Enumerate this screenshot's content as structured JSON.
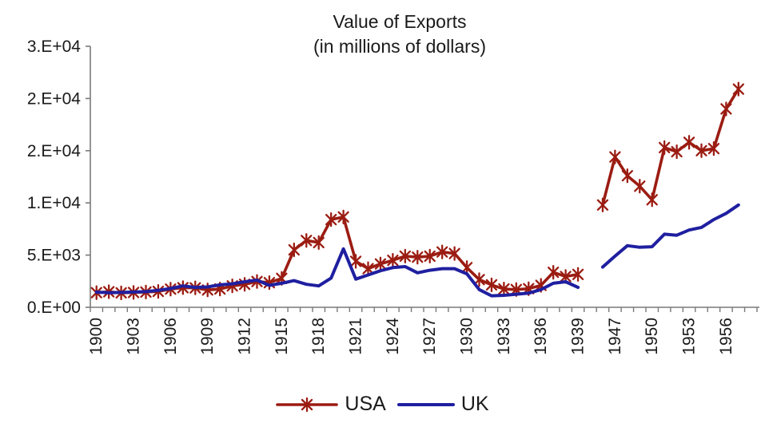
{
  "title": {
    "line1": "Value of Exports",
    "line2": "(in millions of dollars)"
  },
  "legend": {
    "usa_label": "USA",
    "uk_label": "UK"
  },
  "colors": {
    "usa": "#9B1C12",
    "uk": "#1F1FA0",
    "axis": "#7a7a7a",
    "text": "#1a1a1a"
  },
  "chart_data": {
    "type": "line",
    "title": "Value of Exports (in millions of dollars)",
    "xlabel": "",
    "ylabel": "",
    "ylim": [
      0,
      25000
    ],
    "grid": false,
    "legend_position": "bottom",
    "x_label_every": 3,
    "y_ticks": [
      {
        "value": 0,
        "label": "0.E+00"
      },
      {
        "value": 5000,
        "label": "5.E+03"
      },
      {
        "value": 10000,
        "label": "1.E+04"
      },
      {
        "value": 15000,
        "label": "2.E+04"
      },
      {
        "value": 20000,
        "label": "2.E+04"
      },
      {
        "value": 25000,
        "label": "3.E+04"
      }
    ],
    "categories": [
      1900,
      1901,
      1902,
      1903,
      1904,
      1905,
      1906,
      1907,
      1908,
      1909,
      1910,
      1911,
      1912,
      1913,
      1914,
      1915,
      1916,
      1917,
      1918,
      1919,
      1920,
      1921,
      1922,
      1923,
      1924,
      1925,
      1926,
      1927,
      1928,
      1929,
      1930,
      1931,
      1932,
      1933,
      1934,
      1935,
      1936,
      1937,
      1938,
      1939,
      1945,
      1946,
      1947,
      1948,
      1949,
      1950,
      1951,
      1952,
      1953,
      1954,
      1955,
      1956,
      1957,
      1958
    ],
    "series": [
      {
        "name": "USA",
        "color": "#9B1C12",
        "marker": "star",
        "line_width": 3.6,
        "values": [
          1400,
          1490,
          1380,
          1420,
          1460,
          1520,
          1740,
          1880,
          1860,
          1660,
          1750,
          2050,
          2200,
          2470,
          2360,
          2770,
          5500,
          6400,
          6200,
          8400,
          8650,
          4400,
          3700,
          4150,
          4500,
          4900,
          4800,
          4900,
          5300,
          5150,
          3800,
          2650,
          2150,
          1750,
          1700,
          1780,
          2100,
          3350,
          2950,
          3150,
          null,
          9800,
          14400,
          12600,
          11600,
          10300,
          15300,
          14900,
          15800,
          15000,
          15200,
          19000,
          20900,
          null
        ]
      },
      {
        "name": "UK",
        "color": "#1F1FA0",
        "marker": "none",
        "line_width": 4,
        "values": [
          1450,
          1400,
          1420,
          1460,
          1500,
          1620,
          1800,
          2050,
          1900,
          1950,
          2150,
          2250,
          2450,
          2600,
          2100,
          2300,
          2550,
          2200,
          2050,
          2800,
          5600,
          2700,
          3100,
          3500,
          3800,
          3900,
          3300,
          3550,
          3700,
          3700,
          3200,
          1700,
          1100,
          1150,
          1250,
          1350,
          1700,
          2300,
          2450,
          1900,
          null,
          3850,
          4900,
          5900,
          5750,
          5800,
          7000,
          6900,
          7400,
          7650,
          8400,
          9000,
          9800,
          null
        ]
      }
    ]
  }
}
